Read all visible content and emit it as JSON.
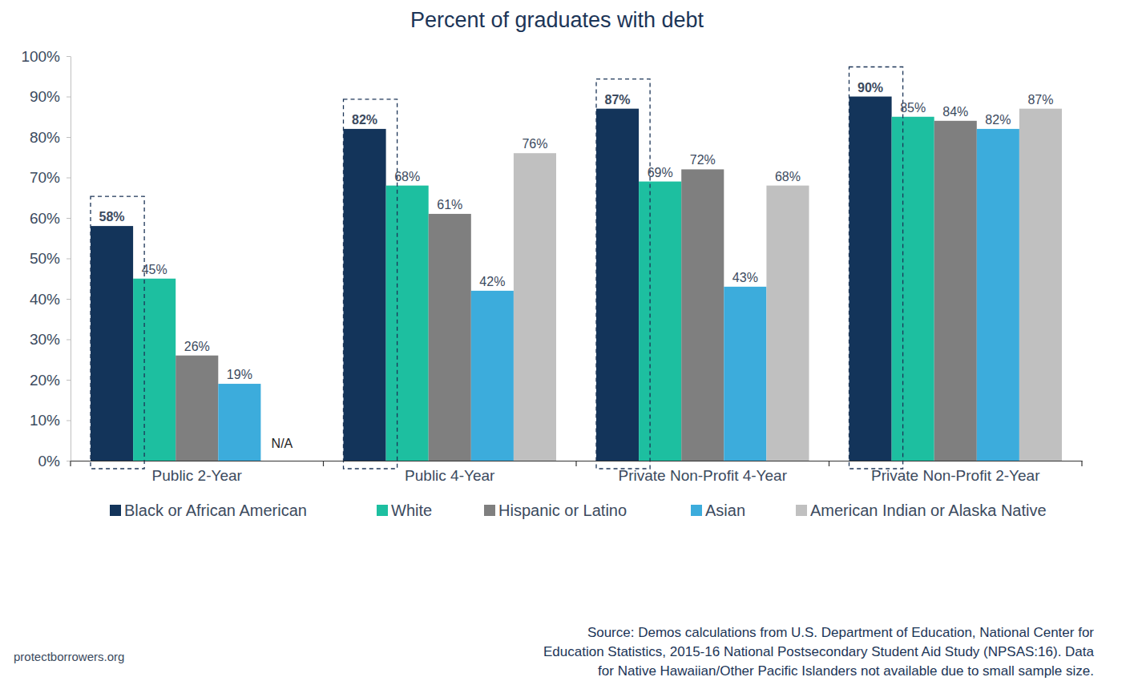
{
  "chart_data": {
    "type": "bar",
    "title": "Percent of graduates with debt",
    "categories": [
      "Public 2-Year",
      "Public 4-Year",
      "Private Non-Profit 4-Year",
      "Private Non-Profit 2-Year"
    ],
    "series": [
      {
        "name": "Black or African American",
        "color": "#13345a",
        "values": [
          58,
          82,
          87,
          90
        ],
        "value_labels": [
          "58%",
          "82%",
          "87%",
          "90%"
        ]
      },
      {
        "name": "White",
        "color": "#1dbfa0",
        "values": [
          45,
          68,
          69,
          85
        ],
        "value_labels": [
          "45%",
          "68%",
          "69%",
          "85%"
        ]
      },
      {
        "name": "Hispanic or Latino",
        "color": "#7f7f7f",
        "values": [
          26,
          61,
          72,
          84
        ],
        "value_labels": [
          "26%",
          "61%",
          "72%",
          "84%"
        ]
      },
      {
        "name": "Asian",
        "color": "#3cacdc",
        "values": [
          19,
          42,
          43,
          82
        ],
        "value_labels": [
          "19%",
          "42%",
          "43%",
          "82%"
        ]
      },
      {
        "name": "American Indian or Alaska Native",
        "color": "#c0c0c0",
        "values": [
          null,
          76,
          68,
          87
        ],
        "value_labels": [
          "N/A",
          "76%",
          "68%",
          "87%"
        ]
      }
    ],
    "ylim": [
      0,
      100
    ],
    "yticks": [
      {
        "value": 0,
        "label": "0%"
      },
      {
        "value": 10,
        "label": "10%"
      },
      {
        "value": 20,
        "label": "20%"
      },
      {
        "value": 30,
        "label": "30%"
      },
      {
        "value": 40,
        "label": "40%"
      },
      {
        "value": 50,
        "label": "50%"
      },
      {
        "value": 60,
        "label": "60%"
      },
      {
        "value": 70,
        "label": "70%"
      },
      {
        "value": 80,
        "label": "80%"
      },
      {
        "value": 90,
        "label": "90%"
      },
      {
        "value": 100,
        "label": "100%"
      }
    ],
    "grid": false,
    "legend": "bottom",
    "data_labels": true,
    "source": [
      "Source: Demos calculations from U.S. Department of Education, National Center for",
      "Education Statistics, 2015-16 National Postsecondary Student Aid Study (NPSAS:16). Data",
      "for Native Hawaiian/Other Pacific Islanders not available due to small sample size."
    ],
    "annotations": [
      "protectborrowers.org"
    ]
  }
}
